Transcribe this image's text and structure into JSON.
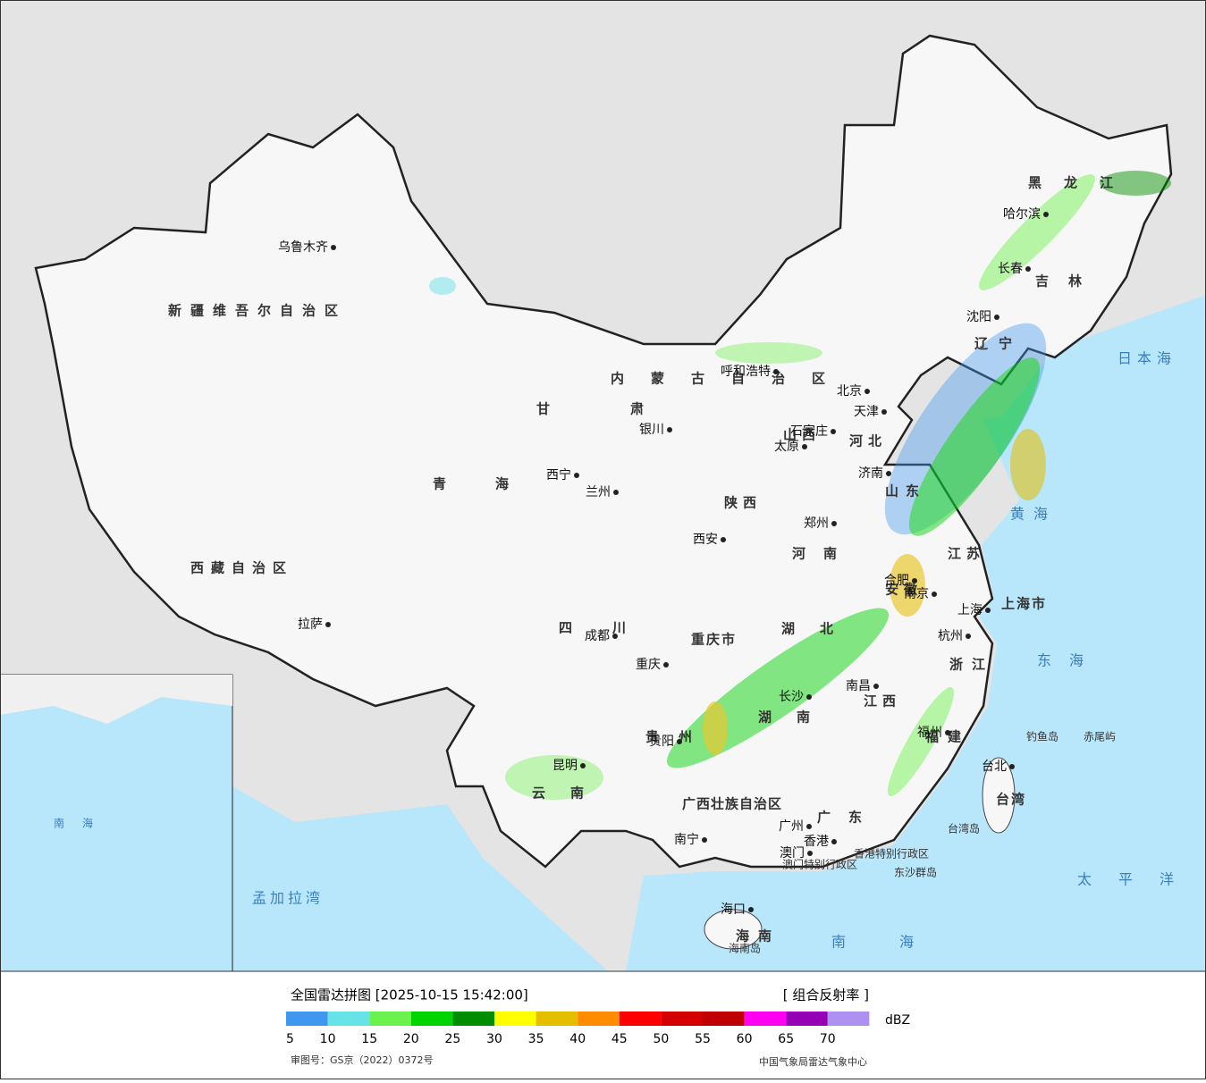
{
  "legend": {
    "title": "全国雷达拼图 [2025-10-15 15:42:00]",
    "product": "[ 组合反射率 ]",
    "unit": "dBZ",
    "colors": [
      "#3f98ee",
      "#66e3e6",
      "#6cf24c",
      "#00d400",
      "#008e00",
      "#ffff00",
      "#e6be00",
      "#ff8c00",
      "#ff0000",
      "#d40000",
      "#c00000",
      "#ff00f0",
      "#9600b4",
      "#ae90f0"
    ],
    "ticks": [
      "5",
      "10",
      "15",
      "20",
      "25",
      "30",
      "35",
      "40",
      "45",
      "50",
      "55",
      "60",
      "65",
      "70"
    ]
  },
  "footer": {
    "approval": "审图号：GS京（2022）0372号",
    "agency": "中国气象局雷达气象中心"
  },
  "map": {
    "regions": [
      "新疆维吾尔自治区",
      "西藏自治区",
      "青海",
      "甘肃",
      "内蒙古自治区",
      "四川",
      "重庆市",
      "陕西",
      "山西",
      "河南",
      "河北",
      "山东",
      "江苏",
      "安徽",
      "湖北",
      "湖南",
      "江西",
      "浙江",
      "福建",
      "广东",
      "广西壮族自治区",
      "贵州",
      "云南",
      "海南",
      "台湾",
      "黑龙江",
      "吉林",
      "辽宁",
      "上海市"
    ],
    "cities": [
      "乌鲁木齐",
      "拉萨",
      "西宁",
      "兰州",
      "银川",
      "呼和浩特",
      "北京",
      "天津",
      "石家庄",
      "太原",
      "西安",
      "郑州",
      "济南",
      "南京",
      "合肥",
      "上海",
      "杭州",
      "长沙",
      "南昌",
      "福州",
      "台北",
      "广州",
      "香港",
      "澳门",
      "南宁",
      "海口",
      "贵阳",
      "昆明",
      "成都",
      "重庆",
      "沈阳",
      "长春",
      "哈尔滨"
    ],
    "seas": [
      "日本海",
      "黄海",
      "东海",
      "南海",
      "太平洋",
      "孟加拉湾",
      "南海"
    ],
    "islands": [
      "钓鱼岛",
      "赤尾屿",
      "台湾岛",
      "东沙群岛",
      "海南岛",
      "香港特别行政区",
      "澳门特别行政区"
    ]
  }
}
